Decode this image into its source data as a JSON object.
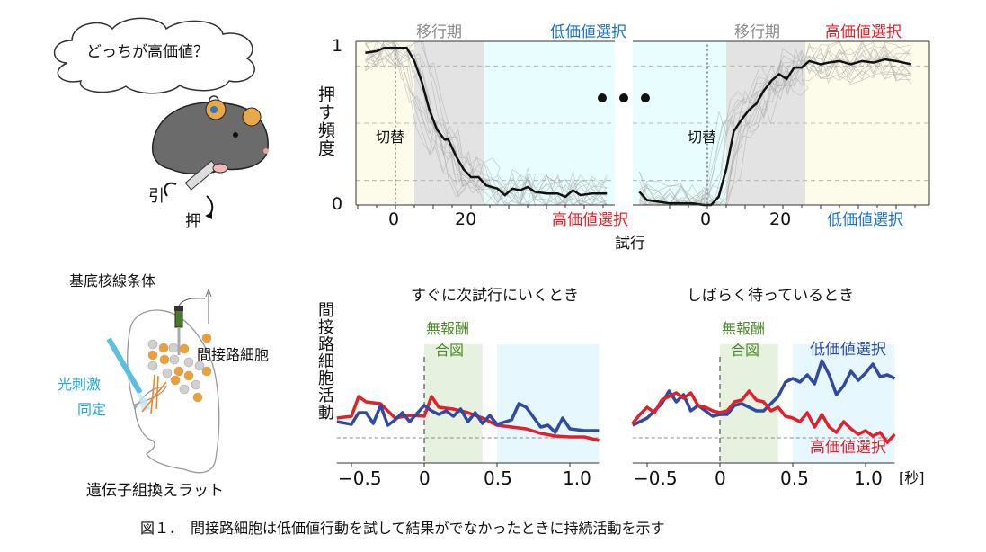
{
  "colors": {
    "red": "#e0212b",
    "blue": "#2f4aa0",
    "label_blue": "#1a73c8",
    "green": "#4c8a2a",
    "cyan_label": "#1aa6e0",
    "orange": "#f0a030",
    "grey_phase": "#e3e3e3",
    "cyan_phase": "#e8fdfd",
    "yellow_phase": "#fdfbea"
  },
  "illustration": {
    "thought": "どっちが高価値？",
    "pull": "引",
    "push": "押",
    "striatum": "基底核線条体",
    "indirect_cells": "間接路細胞",
    "opto_line1": "光刺激",
    "opto_line2": "同定",
    "rat": "遺伝子組換えラット"
  },
  "caption": "図１．　間接路細胞は低価値行動を試して結果がでなかったときに持続活動を示す",
  "chart_data": [
    {
      "type": "line",
      "ylabel": "押す頻度",
      "xlabel": "試行",
      "ylim": [
        0,
        1
      ],
      "yticks": [
        "0",
        "1"
      ],
      "grid": "dashed at 0.15, 0.5, 0.85",
      "panels": [
        {
          "phase_labels": {
            "transition": "移行期",
            "after": "低価値選択",
            "before": "高価値選択"
          },
          "switch_label": "切替",
          "xticks": [
            "0",
            "20"
          ],
          "phases": {
            "before": [
              -10,
              5
            ],
            "transition": [
              5,
              23.5
            ],
            "after": [
              23.5,
              58
            ]
          },
          "x": [
            -8,
            -5,
            -3,
            0,
            3,
            5,
            7,
            9,
            11,
            13,
            14,
            16,
            18,
            20,
            22,
            24,
            27,
            29,
            31,
            33,
            35,
            37,
            40,
            43,
            45,
            47,
            49,
            52,
            56
          ],
          "y": [
            0.93,
            0.94,
            0.96,
            0.96,
            0.96,
            0.88,
            0.75,
            0.58,
            0.46,
            0.4,
            0.4,
            0.3,
            0.22,
            0.17,
            0.17,
            0.12,
            0.1,
            0.06,
            0.1,
            0.09,
            0.11,
            0.08,
            0.07,
            0.07,
            0.05,
            0.09,
            0.06,
            0.07,
            0.07
          ]
        },
        {
          "phase_labels": {
            "transition": "移行期",
            "after": "高価値選択",
            "before": "低価値選択"
          },
          "switch_label": "切替",
          "xticks": [
            "0",
            "20"
          ],
          "phases": {
            "before": [
              -19,
              5
            ],
            "transition": [
              5,
              26
            ],
            "after": [
              26,
              57
            ]
          },
          "x": [
            -18,
            -16,
            -13,
            -10,
            -7,
            -4,
            -1,
            1,
            3,
            5,
            7,
            9,
            11,
            13,
            15,
            17,
            19,
            21,
            23,
            25,
            27,
            30,
            32,
            35,
            38,
            41,
            44,
            47,
            50,
            54
          ],
          "y": [
            0.08,
            0.03,
            0.02,
            0.01,
            0.01,
            0.01,
            0.0,
            0.0,
            0.05,
            0.22,
            0.45,
            0.52,
            0.58,
            0.62,
            0.7,
            0.76,
            0.8,
            0.77,
            0.84,
            0.84,
            0.88,
            0.86,
            0.87,
            0.88,
            0.86,
            0.88,
            0.87,
            0.89,
            0.88,
            0.86
          ]
        }
      ]
    },
    {
      "type": "line",
      "ylabel": "間接路細胞活動",
      "xunit": "[秒]",
      "xlim": [
        -0.6,
        1.2
      ],
      "xticks": [
        "−0.5",
        "0",
        "0.5",
        "1.0"
      ],
      "no_reward_label": [
        "無報酬",
        "合図"
      ],
      "no_reward_window": [
        0,
        0.4
      ],
      "choice_window": [
        0.5,
        1.2
      ],
      "panels": [
        {
          "title": "すぐに次試行にいくとき",
          "series": [
            {
              "color": "red",
              "x": [
                -0.6,
                -0.5,
                -0.45,
                -0.4,
                -0.3,
                -0.2,
                -0.1,
                0,
                0.05,
                0.1,
                0.2,
                0.3,
                0.4,
                0.5,
                0.6,
                0.7,
                0.8,
                0.9,
                1.0,
                1.1,
                1.2
              ],
              "y": [
                0.22,
                0.24,
                0.46,
                0.4,
                0.38,
                0.22,
                0.25,
                0.24,
                0.46,
                0.34,
                0.32,
                0.28,
                0.22,
                0.14,
                0.12,
                0.1,
                0.05,
                0.02,
                0.01,
                0.01,
                -0.03
              ]
            },
            {
              "color": "blue",
              "x": [
                -0.6,
                -0.5,
                -0.45,
                -0.4,
                -0.35,
                -0.3,
                -0.25,
                -0.2,
                -0.15,
                -0.1,
                0,
                0.05,
                0.1,
                0.15,
                0.2,
                0.25,
                0.3,
                0.35,
                0.4,
                0.45,
                0.5,
                0.6,
                0.65,
                0.7,
                0.8,
                0.85,
                0.9,
                0.95,
                1.0,
                1.1,
                1.2
              ],
              "y": [
                0.18,
                0.15,
                0.28,
                0.28,
                0.16,
                0.36,
                0.14,
                0.2,
                0.28,
                0.18,
                0.36,
                0.3,
                0.26,
                0.3,
                0.24,
                0.32,
                0.18,
                0.28,
                0.16,
                0.25,
                0.15,
                0.2,
                0.38,
                0.34,
                0.12,
                0.14,
                0.06,
                0.22,
                0.1,
                0.08,
                0.08
              ]
            }
          ]
        },
        {
          "title": "しばらく待っているとき",
          "series": [
            {
              "name": "低価値選択",
              "color": "blue",
              "x": [
                -0.6,
                -0.5,
                -0.4,
                -0.35,
                -0.3,
                -0.25,
                -0.2,
                -0.15,
                -0.1,
                -0.05,
                0,
                0.05,
                0.1,
                0.15,
                0.2,
                0.25,
                0.3,
                0.4,
                0.45,
                0.5,
                0.55,
                0.6,
                0.65,
                0.7,
                0.75,
                0.8,
                0.85,
                0.9,
                0.95,
                1.0,
                1.05,
                1.1,
                1.15,
                1.2
              ],
              "y": [
                0.14,
                0.22,
                0.38,
                0.52,
                0.4,
                0.48,
                0.3,
                0.36,
                0.3,
                0.24,
                0.26,
                0.26,
                0.36,
                0.38,
                0.34,
                0.3,
                0.3,
                0.46,
                0.62,
                0.66,
                0.62,
                0.7,
                0.6,
                0.86,
                0.7,
                0.48,
                0.58,
                0.74,
                0.64,
                0.72,
                0.82,
                0.68,
                0.7,
                0.66
              ]
            },
            {
              "name": "高価値選択",
              "color": "red",
              "x": [
                -0.6,
                -0.55,
                -0.5,
                -0.45,
                -0.4,
                -0.3,
                -0.25,
                -0.2,
                -0.15,
                -0.1,
                -0.05,
                0,
                0.05,
                0.1,
                0.15,
                0.2,
                0.25,
                0.3,
                0.35,
                0.4,
                0.45,
                0.5,
                0.55,
                0.6,
                0.65,
                0.7,
                0.75,
                0.8,
                0.85,
                0.9,
                0.95,
                1.0,
                1.05,
                1.1,
                1.15,
                1.2
              ],
              "y": [
                0.16,
                0.26,
                0.34,
                0.28,
                0.42,
                0.5,
                0.44,
                0.5,
                0.36,
                0.34,
                0.3,
                0.28,
                0.3,
                0.4,
                0.42,
                0.52,
                0.42,
                0.4,
                0.3,
                0.34,
                0.24,
                0.22,
                0.18,
                0.28,
                0.12,
                0.26,
                0.12,
                0.06,
                0.18,
                0.1,
                0.04,
                0.08,
                0.02,
                0.06,
                -0.05,
                0.04
              ]
            }
          ]
        }
      ]
    }
  ]
}
